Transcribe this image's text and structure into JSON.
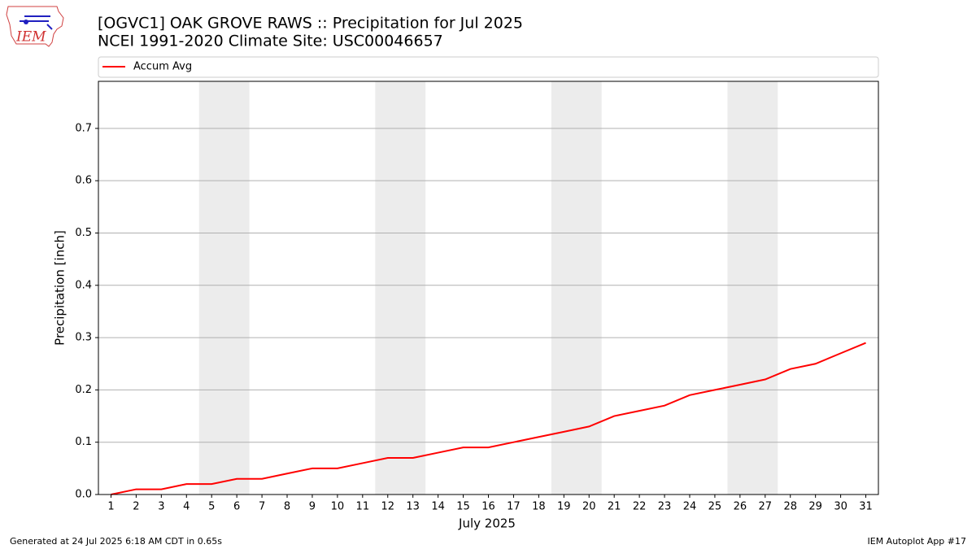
{
  "logo": "IEM",
  "chart_data": {
    "type": "line",
    "title": "[OGVC1] OAK GROVE RAWS :: Precipitation for Jul 2025",
    "subtitle": "NCEI 1991-2020 Climate Site: USC00046657",
    "xlabel": "July 2025",
    "ylabel": "Precipitation [inch]",
    "x": [
      1,
      2,
      3,
      4,
      5,
      6,
      7,
      8,
      9,
      10,
      11,
      12,
      13,
      14,
      15,
      16,
      17,
      18,
      19,
      20,
      21,
      22,
      23,
      24,
      25,
      26,
      27,
      28,
      29,
      30,
      31
    ],
    "series": [
      {
        "name": "Accum Avg",
        "color": "#ff0000",
        "values": [
          0,
          0.01,
          0.01,
          0.02,
          0.02,
          0.03,
          0.03,
          0.04,
          0.05,
          0.05,
          0.06,
          0.07,
          0.07,
          0.08,
          0.09,
          0.09,
          0.1,
          0.11,
          0.12,
          0.13,
          0.15,
          0.16,
          0.17,
          0.19,
          0.2,
          0.21,
          0.22,
          0.24,
          0.25,
          0.27,
          0.29
        ]
      }
    ],
    "xlim": [
      0.5,
      31.5
    ],
    "xticks": [
      1,
      2,
      3,
      4,
      5,
      6,
      7,
      8,
      9,
      10,
      11,
      12,
      13,
      14,
      15,
      16,
      17,
      18,
      19,
      20,
      21,
      22,
      23,
      24,
      25,
      26,
      27,
      28,
      29,
      30,
      31
    ],
    "ylim": [
      0,
      0.79
    ],
    "yticks": [
      {
        "value": 0,
        "label": "0.0"
      },
      0.1,
      0.2,
      0.3,
      0.4,
      0.5,
      0.6,
      0.7
    ],
    "grid": true,
    "shaded_spans": [
      [
        4.5,
        6.5
      ],
      [
        11.5,
        13.5
      ],
      [
        18.5,
        20.5
      ],
      [
        25.5,
        27.5
      ]
    ],
    "shade_color": "#ececec",
    "legend_position": "top",
    "footer_left": "Generated at 24 Jul 2025 6:18 AM CDT in 0.65s",
    "footer_right": "IEM Autoplot App #17"
  }
}
